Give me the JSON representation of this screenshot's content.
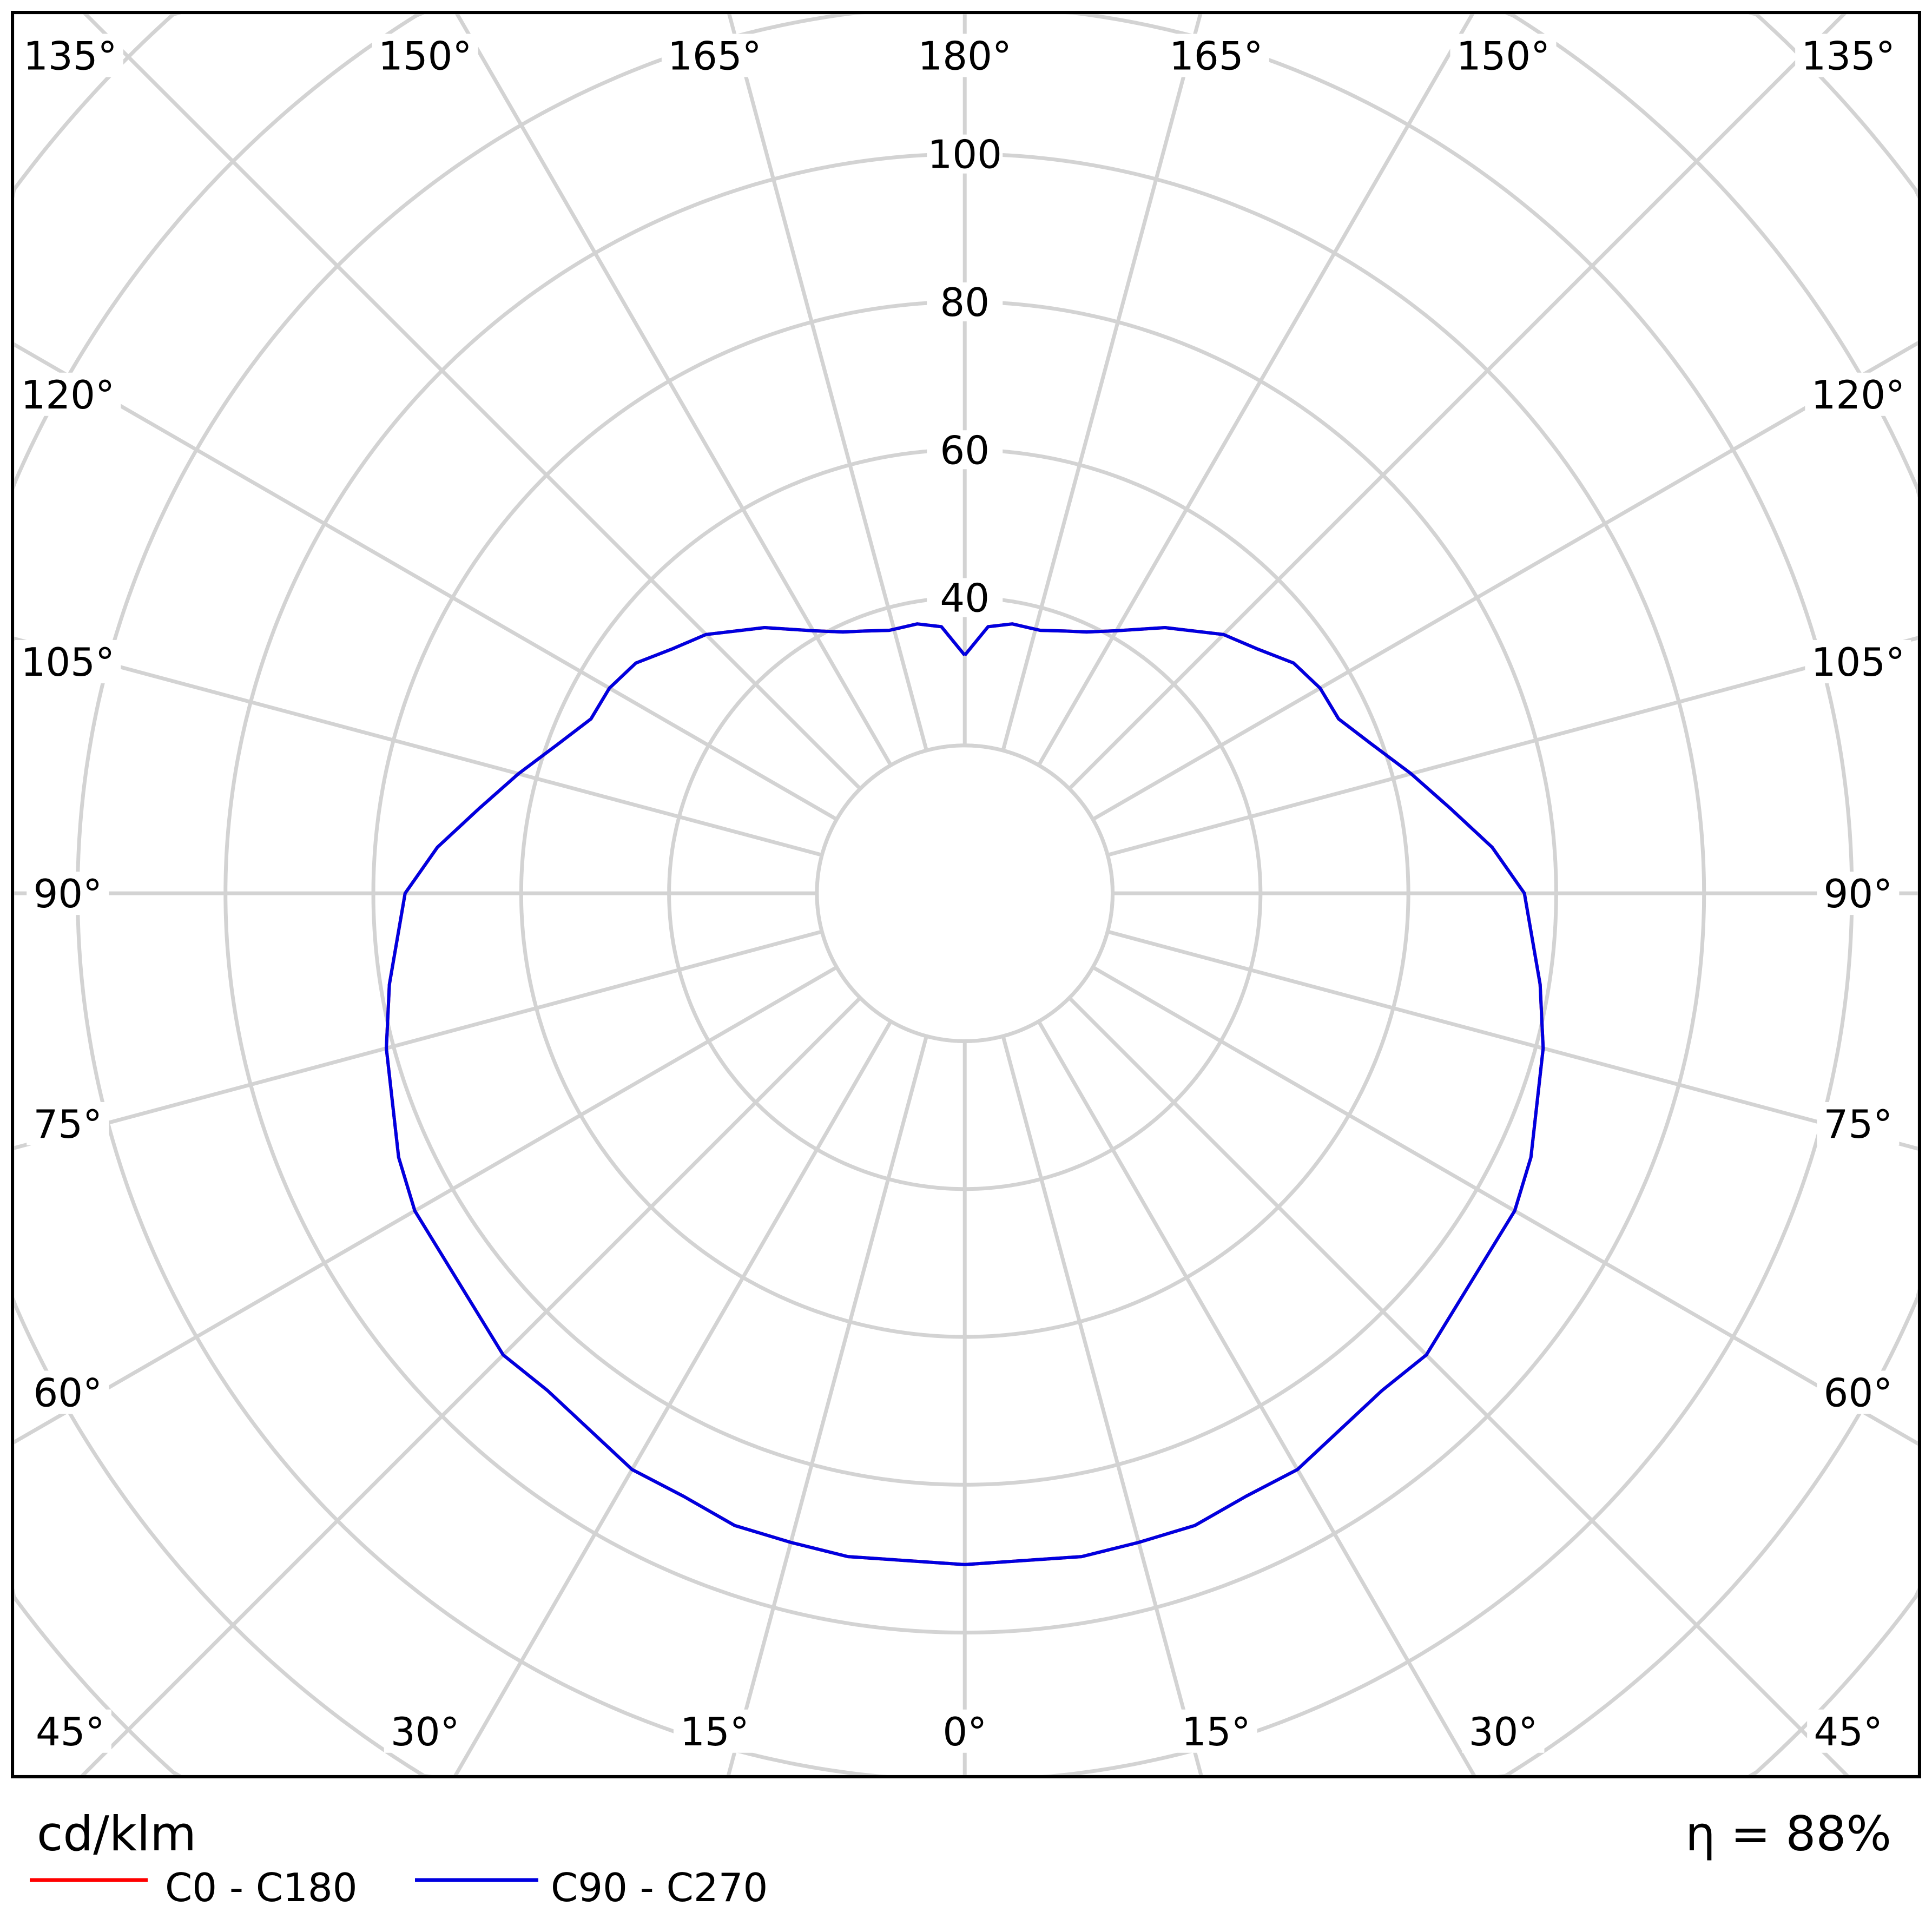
{
  "chart_data": {
    "type": "polar",
    "unit_label": "cd/klm",
    "efficiency_label": "η = 88%",
    "radial_ticks": [
      40,
      60,
      80,
      100
    ],
    "radial_grid": [
      20,
      40,
      60,
      80,
      100,
      120,
      140,
      160,
      180
    ],
    "angle_grid_step_deg": 15,
    "angle_labels": {
      "top": [
        "135°",
        "150°",
        "165°",
        "180°",
        "165°",
        "150°",
        "135°"
      ],
      "left": [
        "120°",
        "105°",
        "90°",
        "75°",
        "60°"
      ],
      "right": [
        "120°",
        "105°",
        "90°",
        "75°",
        "60°"
      ],
      "bottom": [
        "45°",
        "30°",
        "15°",
        "0°",
        "15°",
        "30°",
        "45°"
      ]
    },
    "grid": true,
    "legend_placement": "bottom-left",
    "series": [
      {
        "name": "C0 - C180",
        "color": "#ff0000",
        "gamma_deg": [
          0,
          10,
          15,
          20,
          25,
          30,
          40,
          45,
          60,
          65,
          75,
          81,
          90,
          95,
          100,
          105,
          110,
          115,
          120,
          125,
          130,
          135,
          143,
          150,
          155,
          159,
          164,
          170,
          175,
          180
        ],
        "values": [
          90.8,
          91.1,
          90.9,
          91,
          90,
          90,
          87.8,
          88.3,
          85.9,
          84.5,
          81,
          78.8,
          75.7,
          71.6,
          66.6,
          62.5,
          58.7,
          55.8,
          55.5,
          54.3,
          51.5,
          49.5,
          45,
          41,
          39,
          38,
          37,
          37,
          36.2,
          32.2
        ]
      },
      {
        "name": "C90 - C270",
        "color": "#0000e0",
        "gamma_deg": [
          0,
          10,
          15,
          20,
          25,
          30,
          40,
          45,
          60,
          65,
          75,
          81,
          90,
          95,
          100,
          105,
          110,
          115,
          120,
          125,
          130,
          135,
          143,
          150,
          155,
          159,
          164,
          170,
          175,
          180
        ],
        "values": [
          90.8,
          91.1,
          90.9,
          91,
          90,
          90,
          87.8,
          88.3,
          85.9,
          84.5,
          81,
          78.8,
          75.7,
          71.6,
          66.6,
          62.5,
          58.7,
          55.8,
          55.5,
          54.3,
          51.5,
          49.5,
          45,
          41,
          39,
          38,
          37,
          37,
          36.2,
          32.2
        ]
      }
    ]
  },
  "colors": {
    "grid": "#d3d3d3",
    "frame": "#000000"
  }
}
